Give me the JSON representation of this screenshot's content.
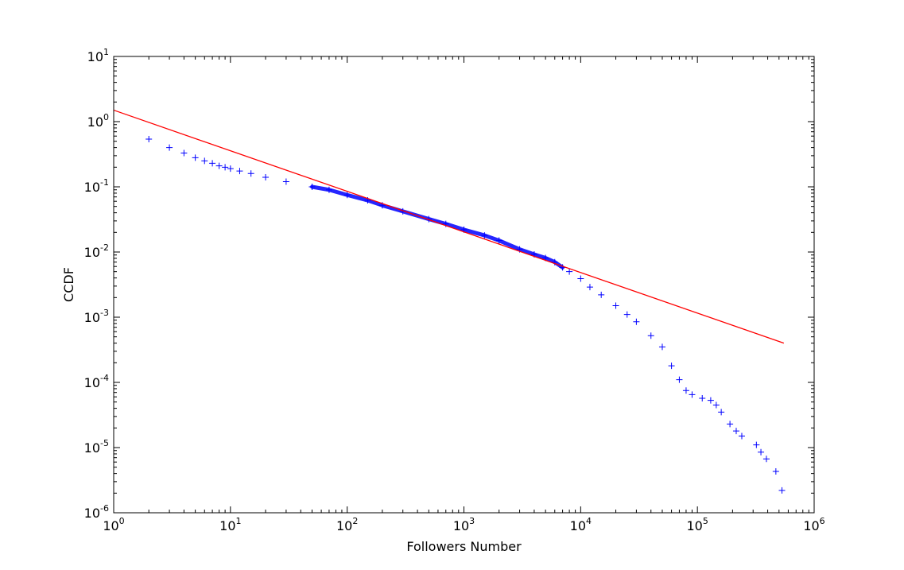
{
  "chart_data": {
    "type": "scatter",
    "xlabel": "Followers Number",
    "ylabel": "CCDF",
    "xscale": "log",
    "yscale": "log",
    "xlim": [
      1,
      1000000
    ],
    "ylim": [
      1e-06,
      10
    ],
    "grid": false,
    "x_ticks": [
      {
        "base": "10",
        "exp": "0",
        "value": 1
      },
      {
        "base": "10",
        "exp": "1",
        "value": 10
      },
      {
        "base": "10",
        "exp": "2",
        "value": 100
      },
      {
        "base": "10",
        "exp": "3",
        "value": 1000
      },
      {
        "base": "10",
        "exp": "4",
        "value": 10000
      },
      {
        "base": "10",
        "exp": "5",
        "value": 100000
      },
      {
        "base": "10",
        "exp": "6",
        "value": 1000000
      }
    ],
    "y_ticks": [
      {
        "base": "10",
        "exp": "1",
        "value": 10
      },
      {
        "base": "10",
        "exp": "0",
        "value": 1
      },
      {
        "base": "10",
        "exp": "-1",
        "value": 0.1
      },
      {
        "base": "10",
        "exp": "-2",
        "value": 0.01
      },
      {
        "base": "10",
        "exp": "-3",
        "value": 0.001
      },
      {
        "base": "10",
        "exp": "-4",
        "value": 0.0001
      },
      {
        "base": "10",
        "exp": "-5",
        "value": 1e-05
      },
      {
        "base": "10",
        "exp": "-6",
        "value": 1e-06
      }
    ],
    "series": [
      {
        "marker": "+",
        "color": "#0000ff",
        "points": [
          [
            2,
            0.54
          ],
          [
            3,
            0.4
          ],
          [
            4,
            0.33
          ],
          [
            5,
            0.28
          ],
          [
            6,
            0.25
          ],
          [
            7,
            0.23
          ],
          [
            8,
            0.21
          ],
          [
            9,
            0.2
          ],
          [
            10,
            0.19
          ],
          [
            12,
            0.175
          ],
          [
            15,
            0.16
          ],
          [
            20,
            0.14
          ],
          [
            30,
            0.12
          ],
          [
            50,
            0.1
          ],
          [
            70,
            0.09
          ],
          [
            100,
            0.075
          ],
          [
            150,
            0.062
          ],
          [
            200,
            0.052
          ],
          [
            300,
            0.042
          ],
          [
            500,
            0.032
          ],
          [
            700,
            0.027
          ],
          [
            1000,
            0.022
          ],
          [
            1500,
            0.018
          ],
          [
            2000,
            0.015
          ],
          [
            3000,
            0.011
          ],
          [
            4000,
            0.0092
          ],
          [
            5000,
            0.0081
          ],
          [
            6000,
            0.007
          ],
          [
            7000,
            0.0058
          ],
          [
            8000,
            0.005
          ],
          [
            10000,
            0.0039
          ],
          [
            12000,
            0.0029
          ],
          [
            15000,
            0.0022
          ],
          [
            20000,
            0.0015
          ],
          [
            25000,
            0.0011
          ],
          [
            30000,
            0.00085
          ],
          [
            40000,
            0.00052
          ],
          [
            50000,
            0.00035
          ],
          [
            60000,
            0.00018
          ],
          [
            70000,
            0.00011
          ],
          [
            80000,
            7.5e-05
          ],
          [
            90000,
            6.5e-05
          ],
          [
            110000,
            5.7e-05
          ],
          [
            130000,
            5.3e-05
          ],
          [
            145000,
            4.5e-05
          ],
          [
            160000,
            3.5e-05
          ],
          [
            190000,
            2.3e-05
          ],
          [
            215000,
            1.8e-05
          ],
          [
            240000,
            1.5e-05
          ],
          [
            320000,
            1.1e-05
          ],
          [
            350000,
            8.5e-06
          ],
          [
            390000,
            6.7e-06
          ],
          [
            470000,
            4.3e-06
          ],
          [
            530000,
            2.2e-06
          ]
        ]
      },
      {
        "type": "line",
        "color": "#ff0000",
        "points": [
          [
            1,
            1.5
          ],
          [
            550000,
            0.0004
          ]
        ]
      }
    ]
  }
}
